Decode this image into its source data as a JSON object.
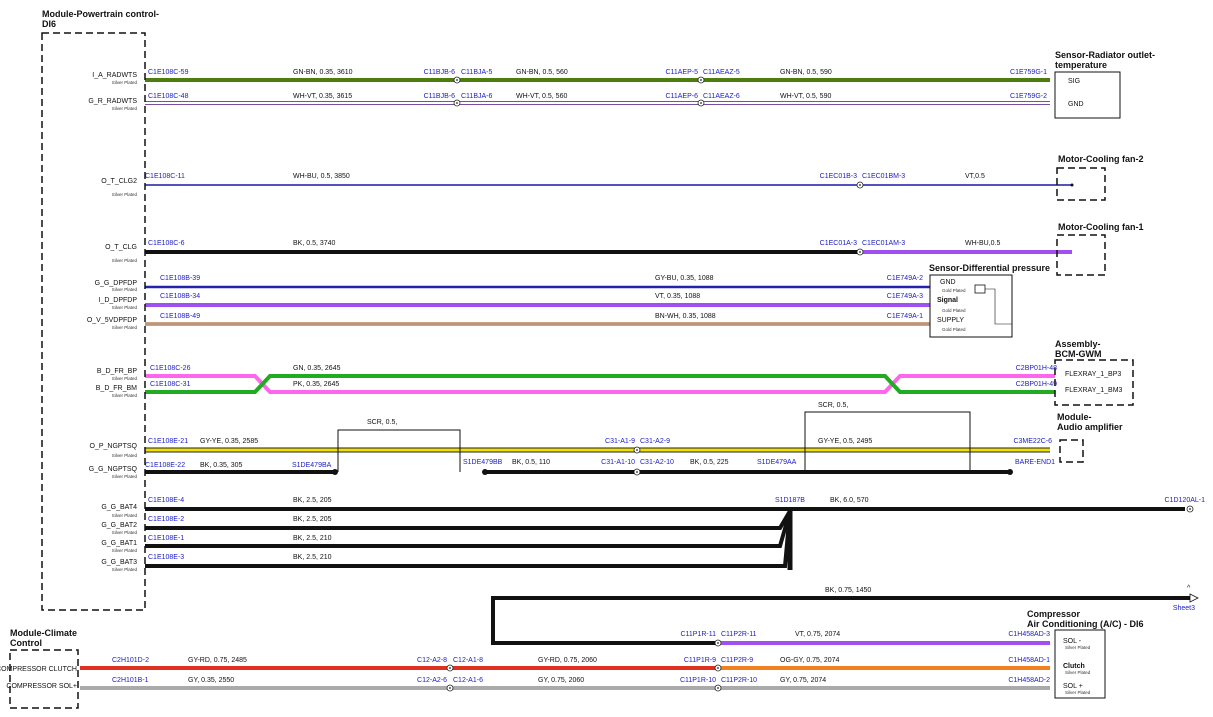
{
  "pcm": {
    "title": [
      "Module-Powertrain control-",
      "DI6"
    ],
    "pins": [
      {
        "name": "I_A_RADWTS",
        "plating": "Silver Plated"
      },
      {
        "name": "G_R_RADWTS",
        "plating": "Silver Plated"
      },
      {
        "name": "O_T_CLG2",
        "plating": "Silver Plated"
      },
      {
        "name": "O_T_CLG",
        "plating": "Silver Plated"
      },
      {
        "name": "G_G_DPFDP",
        "plating": "Silver Plated"
      },
      {
        "name": "I_D_DPFDP",
        "plating": "Silver Plated"
      },
      {
        "name": "O_V_5VDPFDP",
        "plating": "Silver Plated"
      },
      {
        "name": "B_D_FR_BP",
        "plating": "Silver Plated"
      },
      {
        "name": "B_D_FR_BM",
        "plating": "Silver Plated"
      },
      {
        "name": "O_P_NGPTSQ",
        "plating": "Silver Plated"
      },
      {
        "name": "G_G_NGPTSQ",
        "plating": "Silver Plated"
      },
      {
        "name": "G_G_BAT4",
        "plating": "Silver Plated"
      },
      {
        "name": "G_G_BAT2",
        "plating": "Silver Plated"
      },
      {
        "name": "G_G_BAT1",
        "plating": "Silver Plated"
      },
      {
        "name": "G_G_BAT3",
        "plating": "Silver Plated"
      }
    ]
  },
  "modules": [
    {
      "title": [
        "Sensor-Radiator outlet-",
        "temperature"
      ],
      "pins": [
        "SIG",
        "GND"
      ]
    },
    {
      "title": [
        "Motor-Cooling fan-2"
      ]
    },
    {
      "title": [
        "Motor-Cooling fan-1"
      ]
    },
    {
      "title": [
        "Sensor-Differential pressure"
      ],
      "pins": [
        "GND",
        "Gold Plated",
        "Signal",
        "Gold Plated",
        "SUPPLY",
        "Gold Plated"
      ]
    },
    {
      "title": [
        "Assembly-",
        "BCM-GWM"
      ],
      "pins": [
        "FLEXRAY_1_BP3",
        "FLEXRAY_1_BM3"
      ]
    },
    {
      "title": [
        "Module-",
        "Audio amplifier"
      ]
    },
    {
      "title": [
        "Module-Climate",
        "Control"
      ],
      "pins": [
        "AC COMPRESSOR CLUTCH",
        "COMPRESSOR SOL+"
      ]
    },
    {
      "title": [
        "Compressor",
        "Air Conditioning (A/C) - DI6"
      ],
      "pins": [
        "SOL -",
        "Silver Plated",
        "Clutch",
        "Silver Plated",
        "SOL +",
        "Silver Plated"
      ]
    }
  ],
  "wires": [
    [
      "C1E108C-59",
      "GN-BN, 0.35, 3610",
      "C11BJB-6",
      "C11BJA-5",
      "GN-BN, 0.5, 560",
      "C11AEP-5",
      "C11AEAZ-5",
      "GN-BN, 0.5, 590",
      "C1E759G-1"
    ],
    [
      "C1E108C-48",
      "WH-VT, 0.35, 3615",
      "C11BJB-6",
      "C11BJA-6",
      "WH-VT, 0.5, 560",
      "C11AEP-6",
      "C11AEAZ-6",
      "WH-VT, 0.5, 590",
      "C1E759G-2"
    ],
    [
      "C1E108C-11",
      "WH-BU, 0.5, 3850",
      "C1EC01B-3",
      "C1EC01BM-3",
      "VT,0.5"
    ],
    [
      "C1E108C-6",
      "BK, 0.5, 3740",
      "C1EC01A-3",
      "C1EC01AM-3",
      "WH-BU,0.5"
    ],
    [
      "C1E108B-39",
      "GY-BU, 0.35, 1088",
      "C1E749A-2"
    ],
    [
      "C1E108B-34",
      "VT, 0.35, 1088",
      "C1E749A-3"
    ],
    [
      "C1E108B-49",
      "BN-WH, 0.35, 1088",
      "C1E749A-1"
    ],
    [
      "C1E108C-26",
      "GN, 0.35, 2645",
      "C1E108C-31",
      "PK, 0.35, 2645",
      "C2BP01H-48",
      "C2BP01H-49"
    ],
    [
      "C1E108E-21",
      "GY-YE, 0.35, 2585",
      "SCR, 0.5,",
      "C31-A1-9",
      "C31-A2-9",
      "SCR, 0.5,",
      "GY-YE, 0.5, 2495",
      "C3ME22C-6"
    ],
    [
      "C1E108E-22",
      "BK, 0.35, 305",
      "S1DE479BA",
      "S1DE479BB",
      "BK, 0.5, 110",
      "C31-A1-10",
      "C31-A2-10",
      "BK, 0.5, 225",
      "S1DE479AA",
      "BARE-END1"
    ],
    [
      "C1E108E-4",
      "BK, 2.5, 205",
      "S1D187B",
      "BK, 6.0, 570",
      "C1D120AL-1",
      "C1E108E-2",
      "BK, 2.5, 205",
      "C1E108E-1",
      "BK, 2.5, 210",
      "C1E108E-3",
      "BK, 2.5, 210"
    ],
    [
      "BK, 0.75, 1450"
    ],
    [
      "C11P1R-11",
      "C11P2R-11",
      "VT, 0.75, 2074",
      "C1H458AD-3"
    ],
    [
      "C2H101D-2",
      "GY-RD, 0.75, 2485",
      "C12-A2-8",
      "C12-A1-8",
      "GY-RD, 0.75, 2060",
      "C11P1R-9",
      "C11P2R-9",
      "OG-GY, 0.75, 2074",
      "C1H458AD-1"
    ],
    [
      "C2H101B-1",
      "GY, 0.35, 2550",
      "C12-A2-6",
      "C12-A1-6",
      "GY, 0.75, 2060",
      "C11P1R-10",
      "C11P2R-10",
      "GY, 0.75, 2074",
      "C1H458AD-2"
    ]
  ],
  "sheet_ref": {
    "mark": "^",
    "label": "Sheet3"
  }
}
